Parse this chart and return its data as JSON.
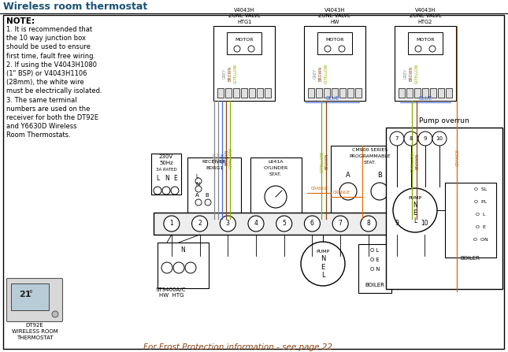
{
  "title": "Wireless room thermostat",
  "title_color": "#1a5276",
  "background": "#ffffff",
  "note_title": "NOTE:",
  "note_lines": [
    "1. It is recommended that",
    "the 10 way junction box",
    "should be used to ensure",
    "first time, fault free wiring.",
    "2. If using the V4043H1080",
    "(1\" BSP) or V4043H1106",
    "(28mm), the white wire",
    "must be electrically isolated.",
    "3. The same terminal",
    "numbers are used on the",
    "receiver for both the DT92E",
    "and Y6630D Wireless",
    "Room Thermostats."
  ],
  "footer_text": "For Frost Protection information - see page 22",
  "bottom_label": "DT92E\nWIRELESS ROOM\nTHERMOSTAT",
  "pump_overrun_label": "Pump overrun",
  "zone_valve_labels": [
    "V4043H\nZONE VALVE\nHTG1",
    "V4043H\nZONE VALVE\nHW",
    "V4043H\nZONE VALVE\nHTG2"
  ]
}
